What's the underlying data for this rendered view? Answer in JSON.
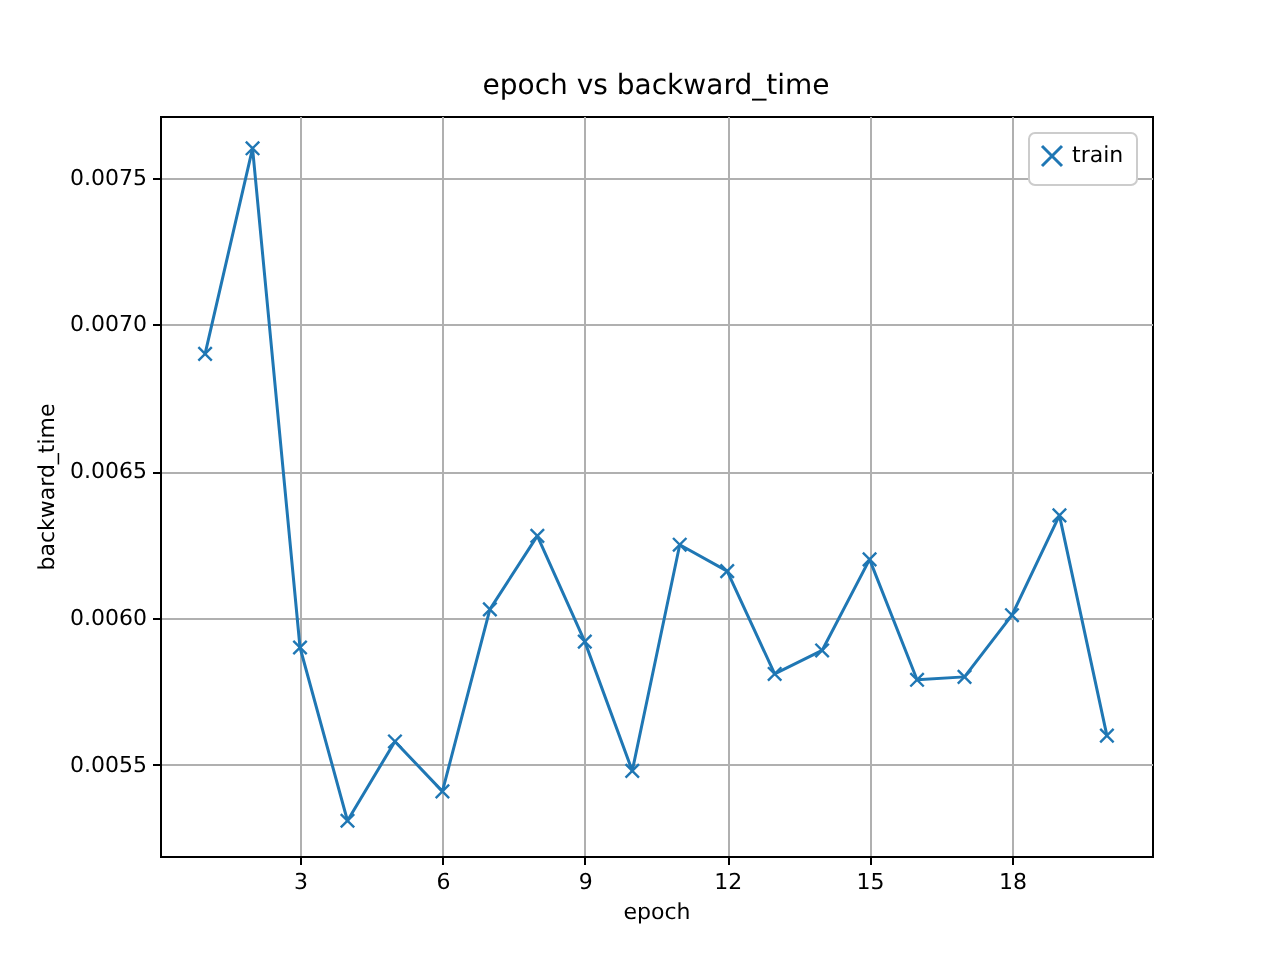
{
  "chart_data": {
    "type": "line",
    "title": "epoch vs backward_time",
    "xlabel": "epoch",
    "ylabel": "backward_time",
    "x": [
      1,
      2,
      3,
      4,
      5,
      6,
      7,
      8,
      9,
      10,
      11,
      12,
      13,
      14,
      15,
      16,
      17,
      18,
      19,
      20
    ],
    "series": [
      {
        "name": "train",
        "color": "#1f77b4",
        "values": [
          0.0069,
          0.0076,
          0.0059,
          0.00531,
          0.00558,
          0.00541,
          0.00603,
          0.00628,
          0.00592,
          0.00548,
          0.00625,
          0.00616,
          0.00581,
          0.00589,
          0.0062,
          0.00579,
          0.0058,
          0.00601,
          0.00635,
          0.0056
        ]
      }
    ],
    "xlim": [
      0.05,
      20.95
    ],
    "ylim": [
      0.00519,
      0.00771
    ],
    "xticks": [
      3,
      6,
      9,
      12,
      15,
      18
    ],
    "yticks": [
      0.0055,
      {
        "value": 0.006,
        "label": "0.0060"
      },
      0.0065,
      {
        "value": 0.007,
        "label": "0.0070"
      },
      0.0075
    ],
    "grid": true,
    "legend": "top right",
    "marker": "cross",
    "line_style": "solid"
  }
}
